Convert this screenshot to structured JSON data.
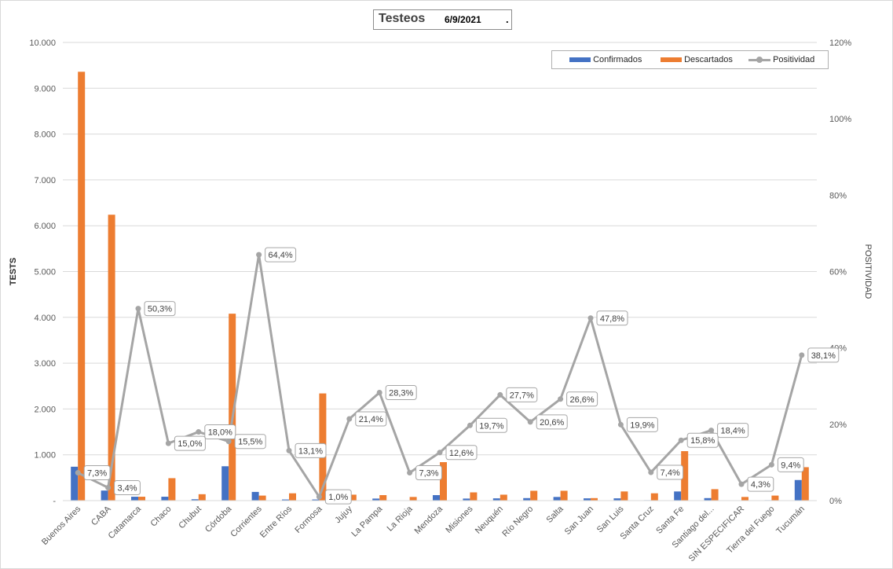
{
  "title": {
    "main": "Testeos",
    "date": "6/9/2021",
    "dot": "."
  },
  "colors": {
    "confirmados": "#4472c4",
    "descartados": "#ed7d31",
    "positividad": "#a5a5a5",
    "grid": "#d9d9d9"
  },
  "chart_data": {
    "type": "bar",
    "title": "Testeos 6/9/2021",
    "ylabel": "TESTS",
    "y2label": "POSITIVIDAD",
    "ylim": [
      0,
      10000
    ],
    "y2lim": [
      0,
      1.2
    ],
    "y_ticks": [
      "-",
      "1.000",
      "2.000",
      "3.000",
      "4.000",
      "5.000",
      "6.000",
      "7.000",
      "8.000",
      "9.000",
      "10.000"
    ],
    "y2_ticks": [
      "0%",
      "20%",
      "40%",
      "60%",
      "80%",
      "100%",
      "120%"
    ],
    "legend_position": "top-right",
    "grid": true,
    "categories": [
      "Buenos Aires",
      "CABA",
      "Catamarca",
      "Chaco",
      "Chubut",
      "Córdoba",
      "Corrientes",
      "Entre Ríos",
      "Formosa",
      "Jujuy",
      "La Pampa",
      "La Rioja",
      "Mendoza",
      "Misiones",
      "Neuquén",
      "Río Negro",
      "Salta",
      "San Juan",
      "San Luis",
      "Santa Cruz",
      "Santa Fe",
      "Santiago del...",
      "SIN ESPECIFICAR",
      "Tierra del Fuego",
      "Tucumán"
    ],
    "series": [
      {
        "name": "Confirmados",
        "type": "bar",
        "values": [
          740,
          220,
          85,
          85,
          30,
          750,
          190,
          25,
          25,
          35,
          45,
          5,
          120,
          45,
          50,
          55,
          80,
          50,
          50,
          10,
          200,
          55,
          5,
          10,
          450
        ]
      },
      {
        "name": "Descartados",
        "type": "bar",
        "values": [
          9360,
          6240,
          85,
          490,
          140,
          4080,
          110,
          160,
          2340,
          130,
          120,
          80,
          840,
          180,
          130,
          215,
          215,
          55,
          200,
          160,
          1080,
          250,
          80,
          110,
          730
        ]
      },
      {
        "name": "Positividad",
        "type": "line",
        "axis": "secondary",
        "values": [
          0.073,
          0.034,
          0.503,
          0.15,
          0.18,
          0.155,
          0.644,
          0.131,
          0.01,
          0.214,
          0.283,
          0.073,
          0.126,
          0.197,
          0.277,
          0.206,
          0.266,
          0.478,
          0.199,
          0.074,
          0.158,
          0.184,
          0.043,
          0.094,
          0.381
        ]
      }
    ],
    "data_labels": [
      "7,3%",
      "3,4%",
      "50,3%",
      "15,0%",
      "18,0%",
      "15,5%",
      "64,4%",
      "13,1%",
      "1,0%",
      "21,4%",
      "28,3%",
      "7,3%",
      "12,6%",
      "19,7%",
      "27,7%",
      "20,6%",
      "26,6%",
      "47,8%",
      "19,9%",
      "7,4%",
      "15,8%",
      "18,4%",
      "4,3%",
      "9,4%",
      "38,1%"
    ]
  }
}
